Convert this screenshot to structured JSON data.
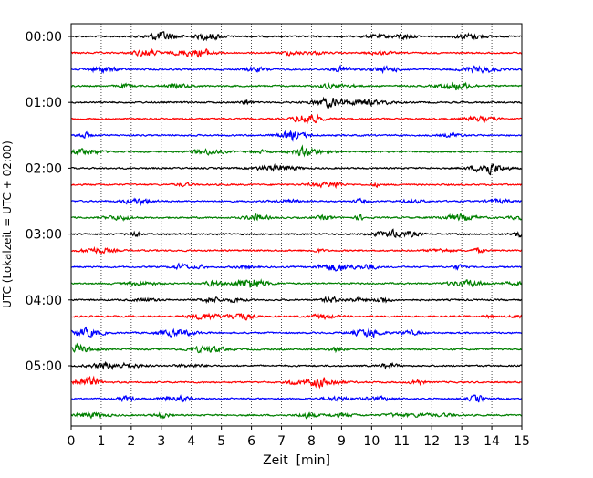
{
  "chart_data": {
    "type": "line",
    "title": "",
    "xlabel": "Zeit  [min]",
    "ylabel": "UTC (Lokalzeit = UTC + 02:00)",
    "xlim": [
      0,
      15
    ],
    "x_ticks": [
      "0",
      "1",
      "2",
      "3",
      "4",
      "5",
      "6",
      "7",
      "8",
      "9",
      "10",
      "11",
      "12",
      "13",
      "14",
      "15"
    ],
    "y_ticks": [
      "00:00",
      "01:00",
      "02:00",
      "03:00",
      "04:00",
      "05:00"
    ],
    "grid": "vertical dotted",
    "trace_minutes": 15,
    "trace_colors": [
      "#000000",
      "#ff0000",
      "#0000ff",
      "#008000"
    ],
    "traces": [
      {
        "start": "00:00",
        "color": "#000000"
      },
      {
        "start": "00:15",
        "color": "#ff0000"
      },
      {
        "start": "00:30",
        "color": "#0000ff"
      },
      {
        "start": "00:45",
        "color": "#008000"
      },
      {
        "start": "01:00",
        "color": "#000000"
      },
      {
        "start": "01:15",
        "color": "#ff0000"
      },
      {
        "start": "01:30",
        "color": "#0000ff"
      },
      {
        "start": "01:45",
        "color": "#008000"
      },
      {
        "start": "02:00",
        "color": "#000000"
      },
      {
        "start": "02:15",
        "color": "#ff0000"
      },
      {
        "start": "02:30",
        "color": "#0000ff"
      },
      {
        "start": "02:45",
        "color": "#008000"
      },
      {
        "start": "03:00",
        "color": "#000000"
      },
      {
        "start": "03:15",
        "color": "#ff0000"
      },
      {
        "start": "03:30",
        "color": "#0000ff"
      },
      {
        "start": "03:45",
        "color": "#008000"
      },
      {
        "start": "04:00",
        "color": "#000000"
      },
      {
        "start": "04:15",
        "color": "#ff0000"
      },
      {
        "start": "04:30",
        "color": "#0000ff"
      },
      {
        "start": "04:45",
        "color": "#008000"
      },
      {
        "start": "05:00",
        "color": "#000000"
      },
      {
        "start": "05:15",
        "color": "#ff0000"
      },
      {
        "start": "05:30",
        "color": "#0000ff"
      },
      {
        "start": "05:45",
        "color": "#008000"
      }
    ]
  }
}
